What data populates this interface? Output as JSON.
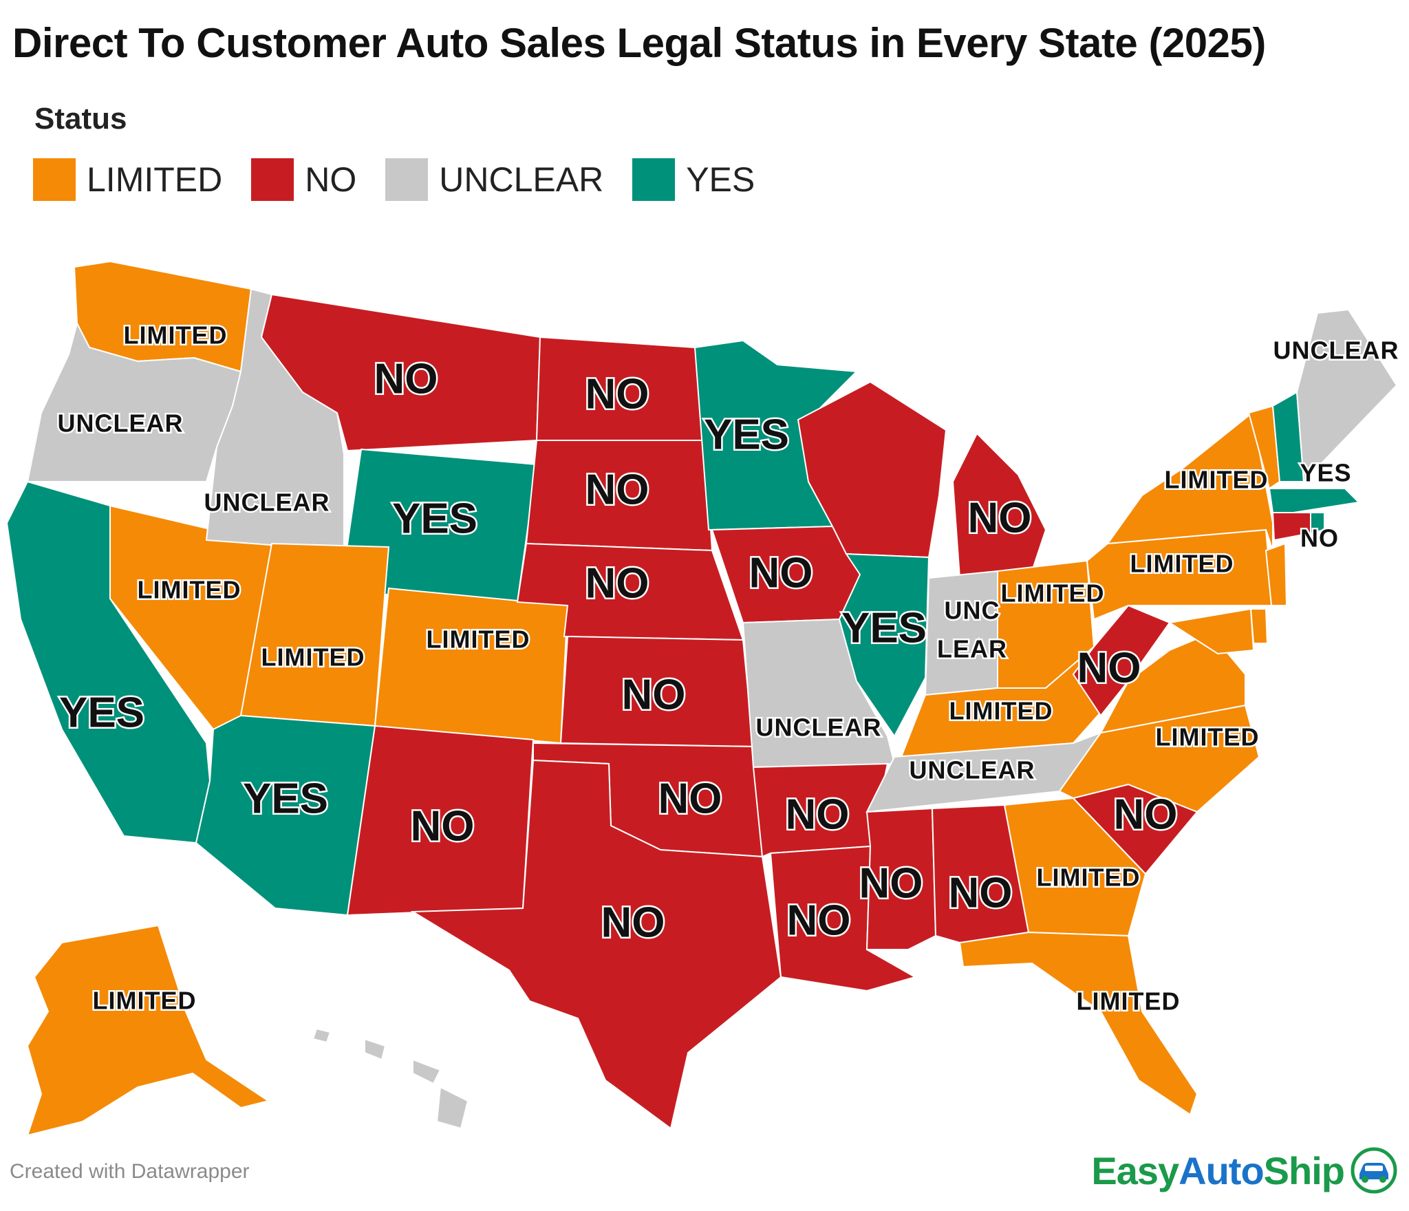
{
  "title": "Direct To Customer Auto Sales Legal Status in Every State (2025)",
  "legend": {
    "title": "Status",
    "items": [
      {
        "label": "LIMITED",
        "color": "#f58a07"
      },
      {
        "label": "NO",
        "color": "#c71d22"
      },
      {
        "label": "UNCLEAR",
        "color": "#c8c8c8"
      },
      {
        "label": "YES",
        "color": "#00917a"
      }
    ]
  },
  "colors": {
    "LIMITED": "#f58a07",
    "NO": "#c71d22",
    "UNCLEAR": "#c8c8c8",
    "YES": "#00917a"
  },
  "states": [
    {
      "code": "WA",
      "status": "LIMITED",
      "label": "LIMITED"
    },
    {
      "code": "OR",
      "status": "UNCLEAR",
      "label": "UNCLEAR"
    },
    {
      "code": "CA",
      "status": "YES",
      "label": "YES"
    },
    {
      "code": "NV",
      "status": "LIMITED",
      "label": "LIMITED"
    },
    {
      "code": "ID",
      "status": "UNCLEAR",
      "label": "UNCLEAR"
    },
    {
      "code": "MT",
      "status": "NO",
      "label": "NO"
    },
    {
      "code": "WY",
      "status": "YES",
      "label": "YES"
    },
    {
      "code": "UT",
      "status": "LIMITED",
      "label": "LIMITED"
    },
    {
      "code": "AZ",
      "status": "YES",
      "label": "YES"
    },
    {
      "code": "CO",
      "status": "LIMITED",
      "label": "LIMITED"
    },
    {
      "code": "NM",
      "status": "NO",
      "label": "NO"
    },
    {
      "code": "ND",
      "status": "NO",
      "label": "NO"
    },
    {
      "code": "SD",
      "status": "NO",
      "label": "NO"
    },
    {
      "code": "NE",
      "status": "NO",
      "label": "NO"
    },
    {
      "code": "KS",
      "status": "NO",
      "label": "NO"
    },
    {
      "code": "OK",
      "status": "NO",
      "label": "NO"
    },
    {
      "code": "TX",
      "status": "NO",
      "label": "NO"
    },
    {
      "code": "MN",
      "status": "YES",
      "label": "YES"
    },
    {
      "code": "IA",
      "status": "NO",
      "label": "NO"
    },
    {
      "code": "MO",
      "status": "UNCLEAR",
      "label": "UNCLEAR"
    },
    {
      "code": "AR",
      "status": "NO",
      "label": "NO"
    },
    {
      "code": "LA",
      "status": "NO",
      "label": "NO"
    },
    {
      "code": "WI",
      "status": "NO",
      "label": ""
    },
    {
      "code": "IL",
      "status": "YES",
      "label": "YES"
    },
    {
      "code": "MI",
      "status": "NO",
      "label": "NO"
    },
    {
      "code": "IN",
      "status": "UNCLEAR",
      "label": "UNC LEAR"
    },
    {
      "code": "OH",
      "status": "LIMITED",
      "label": "LIMITED"
    },
    {
      "code": "KY",
      "status": "LIMITED",
      "label": "LIMITED"
    },
    {
      "code": "TN",
      "status": "UNCLEAR",
      "label": "UNCLEAR"
    },
    {
      "code": "MS",
      "status": "NO",
      "label": "NO"
    },
    {
      "code": "AL",
      "status": "NO",
      "label": "NO"
    },
    {
      "code": "GA",
      "status": "LIMITED",
      "label": "LIMITED"
    },
    {
      "code": "FL",
      "status": "LIMITED",
      "label": "LIMITED"
    },
    {
      "code": "SC",
      "status": "NO",
      "label": "NO"
    },
    {
      "code": "NC",
      "status": "LIMITED",
      "label": "LIMITED"
    },
    {
      "code": "VA",
      "status": "LIMITED",
      "label": ""
    },
    {
      "code": "WV",
      "status": "NO",
      "label": "NO"
    },
    {
      "code": "PA",
      "status": "LIMITED",
      "label": "LIMITED"
    },
    {
      "code": "NY",
      "status": "LIMITED",
      "label": "LIMITED"
    },
    {
      "code": "VT",
      "status": "LIMITED",
      "label": ""
    },
    {
      "code": "NH",
      "status": "YES",
      "label": ""
    },
    {
      "code": "ME",
      "status": "UNCLEAR",
      "label": "UNCLEAR"
    },
    {
      "code": "MA",
      "status": "YES",
      "label": "YES"
    },
    {
      "code": "CT",
      "status": "NO",
      "label": "NO"
    },
    {
      "code": "RI",
      "status": "YES",
      "label": ""
    },
    {
      "code": "NJ",
      "status": "LIMITED",
      "label": ""
    },
    {
      "code": "DE",
      "status": "LIMITED",
      "label": ""
    },
    {
      "code": "MD",
      "status": "LIMITED",
      "label": ""
    },
    {
      "code": "AK",
      "status": "LIMITED",
      "label": "LIMITED"
    },
    {
      "code": "HI",
      "status": "UNCLEAR",
      "label": ""
    }
  ],
  "credit": "Created with Datawrapper",
  "brand": {
    "part1": "Easy",
    "part2": "Auto",
    "part3": "Ship",
    "icon": "car-icon"
  }
}
